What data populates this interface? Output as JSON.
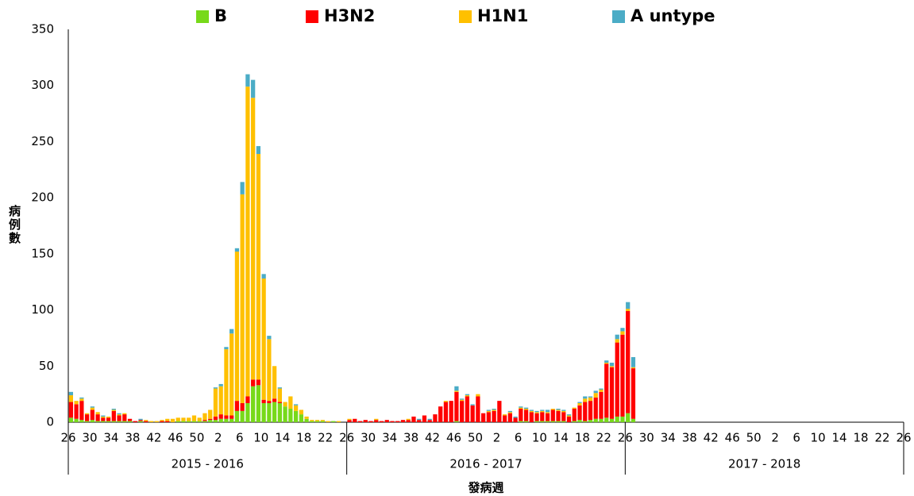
{
  "chart_data": {
    "type": "stacked-bar",
    "x_label": "發病週",
    "y_label": "病例數",
    "seasons": [
      "2015 - 2016",
      "2016 - 2017",
      "2017 - 2018"
    ],
    "categories": [
      "26",
      null,
      null,
      null,
      "30",
      null,
      null,
      null,
      "34",
      null,
      null,
      null,
      "38",
      null,
      null,
      null,
      "42",
      null,
      null,
      null,
      "46",
      null,
      null,
      null,
      "50",
      null,
      null,
      null,
      "2",
      null,
      null,
      null,
      "6",
      null,
      null,
      null,
      "10",
      null,
      null,
      null,
      "14",
      null,
      null,
      null,
      "18",
      null,
      null,
      null,
      "22",
      null,
      null,
      null,
      "26",
      null,
      null,
      null,
      "30",
      null,
      null,
      null,
      "34",
      null,
      null,
      null,
      "38",
      null,
      null,
      null,
      "42",
      null,
      null,
      null,
      "46",
      null,
      null,
      null,
      "50",
      null,
      null,
      null,
      "2",
      null,
      null,
      null,
      "6",
      null,
      null,
      null,
      "10",
      null,
      null,
      null,
      "14",
      null,
      null,
      null,
      "18",
      null,
      null,
      null,
      "22",
      null,
      null,
      null,
      "26",
      null,
      null,
      null,
      "30",
      null,
      null,
      null,
      "34",
      null,
      null,
      null,
      "38",
      null,
      null,
      null,
      "42",
      null,
      null,
      null,
      "46",
      null,
      null,
      null,
      "50",
      null,
      null,
      null,
      "2",
      null,
      null,
      null,
      "6",
      null,
      null,
      null,
      "10",
      null,
      null,
      null,
      "14",
      null,
      null,
      null,
      "18",
      null,
      null,
      null,
      "22",
      null,
      null,
      null,
      "26"
    ],
    "series": [
      {
        "name": "B",
        "color": "#77d91a",
        "values": [
          4,
          3,
          2,
          1,
          2,
          1,
          1,
          1,
          1,
          1,
          1,
          1,
          0,
          1,
          0,
          0,
          0,
          0,
          0,
          0,
          1,
          1,
          1,
          1,
          1,
          1,
          2,
          2,
          3,
          3,
          3,
          10,
          10,
          17,
          32,
          33,
          17,
          17,
          18,
          17,
          14,
          12,
          10,
          7,
          3,
          1,
          1,
          1,
          0,
          1,
          0,
          0,
          0,
          0,
          0,
          0,
          0,
          0,
          0,
          0,
          0,
          0,
          0,
          0,
          0,
          0,
          0,
          0,
          0,
          0,
          0,
          0,
          1,
          0,
          0,
          0,
          0,
          0,
          0,
          0,
          0,
          0,
          0,
          0,
          1,
          1,
          0,
          1,
          1,
          1,
          1,
          1,
          1,
          0,
          1,
          2,
          1,
          2,
          3,
          3,
          4,
          3,
          5,
          5,
          8,
          3,
          null,
          null,
          null,
          null,
          null,
          null,
          null,
          null,
          null,
          null,
          null,
          null,
          null,
          null,
          null,
          null,
          null,
          null,
          null,
          null,
          null,
          null,
          null,
          null,
          null,
          null,
          null,
          null,
          null,
          null,
          null,
          null,
          null,
          null,
          null,
          null,
          null,
          null,
          null,
          null,
          null,
          null,
          null,
          null,
          null,
          null,
          null,
          null,
          null,
          null,
          null
        ]
      },
      {
        "name": "H3N2",
        "color": "#ff0000",
        "values": [
          14,
          13,
          17,
          6,
          9,
          6,
          3,
          3,
          9,
          5,
          6,
          2,
          1,
          1,
          1,
          0,
          0,
          1,
          1,
          0,
          0,
          0,
          0,
          0,
          0,
          1,
          1,
          3,
          4,
          3,
          3,
          9,
          7,
          6,
          6,
          5,
          3,
          2,
          3,
          1,
          0,
          0,
          0,
          0,
          0,
          0,
          0,
          0,
          0,
          0,
          0,
          0,
          2,
          3,
          1,
          2,
          1,
          2,
          1,
          2,
          1,
          1,
          2,
          2,
          5,
          2,
          6,
          2,
          7,
          14,
          18,
          19,
          26,
          19,
          23,
          15,
          23,
          8,
          9,
          10,
          19,
          6,
          8,
          4,
          11,
          10,
          9,
          7,
          8,
          7,
          10,
          9,
          8,
          5,
          11,
          13,
          17,
          17,
          19,
          24,
          48,
          46,
          66,
          73,
          91,
          45,
          null,
          null,
          null,
          null,
          null,
          null,
          null,
          null,
          null,
          null,
          null,
          null,
          null,
          null,
          null,
          null,
          null,
          null,
          null,
          null,
          null,
          null,
          null,
          null,
          null,
          null,
          null,
          null,
          null,
          null,
          null,
          null,
          null,
          null,
          null,
          null,
          null,
          null,
          null,
          null,
          null,
          null,
          null,
          null,
          null,
          null,
          null,
          null,
          null,
          null,
          null
        ]
      },
      {
        "name": "H1N1",
        "color": "#ffc000",
        "values": [
          6,
          3,
          2,
          1,
          2,
          2,
          1,
          1,
          1,
          1,
          1,
          0,
          0,
          0,
          1,
          1,
          1,
          1,
          2,
          3,
          3,
          3,
          3,
          5,
          3,
          6,
          8,
          25,
          25,
          59,
          73,
          133,
          186,
          276,
          251,
          201,
          108,
          55,
          29,
          12,
          4,
          11,
          5,
          4,
          2,
          1,
          1,
          1,
          1,
          0,
          1,
          0,
          1,
          0,
          0,
          0,
          0,
          1,
          0,
          0,
          0,
          0,
          0,
          1,
          0,
          0,
          0,
          0,
          0,
          0,
          1,
          0,
          1,
          1,
          1,
          0,
          2,
          0,
          1,
          1,
          0,
          1,
          1,
          0,
          1,
          1,
          1,
          1,
          1,
          1,
          1,
          1,
          1,
          1,
          1,
          2,
          3,
          3,
          4,
          2,
          1,
          1,
          3,
          3,
          2,
          1,
          null,
          null,
          null,
          null,
          null,
          null,
          null,
          null,
          null,
          null,
          null,
          null,
          null,
          null,
          null,
          null,
          null,
          null,
          null,
          null,
          null,
          null,
          null,
          null,
          null,
          null,
          null,
          null,
          null,
          null,
          null,
          null,
          null,
          null,
          null,
          null,
          null,
          null,
          null,
          null,
          null,
          null,
          null,
          null,
          null,
          null,
          null,
          null,
          null,
          null,
          null
        ]
      },
      {
        "name": "A untype",
        "color": "#4bacc6",
        "values": [
          3,
          0,
          1,
          0,
          1,
          0,
          1,
          0,
          1,
          1,
          0,
          0,
          0,
          1,
          0,
          0,
          0,
          0,
          0,
          0,
          0,
          0,
          0,
          0,
          0,
          0,
          0,
          1,
          2,
          2,
          4,
          3,
          11,
          11,
          16,
          7,
          4,
          3,
          0,
          1,
          0,
          0,
          1,
          0,
          0,
          0,
          0,
          0,
          0,
          0,
          0,
          0,
          0,
          0,
          0,
          0,
          0,
          0,
          0,
          0,
          0,
          0,
          0,
          0,
          0,
          1,
          0,
          1,
          0,
          0,
          0,
          0,
          4,
          1,
          1,
          1,
          0,
          0,
          1,
          1,
          0,
          0,
          1,
          1,
          1,
          1,
          1,
          1,
          1,
          2,
          0,
          1,
          1,
          1,
          0,
          1,
          2,
          1,
          2,
          1,
          2,
          3,
          4,
          3,
          6,
          9,
          null,
          null,
          null,
          null,
          null,
          null,
          null,
          null,
          null,
          null,
          null,
          null,
          null,
          null,
          null,
          null,
          null,
          null,
          null,
          null,
          null,
          null,
          null,
          null,
          null,
          null,
          null,
          null,
          null,
          null,
          null,
          null,
          null,
          null,
          null,
          null,
          null,
          null,
          null,
          null,
          null,
          null,
          null,
          null,
          null,
          null,
          null,
          null,
          null,
          null,
          null
        ]
      }
    ],
    "ylim": [
      0,
      350
    ],
    "yticks": [
      0,
      50,
      100,
      150,
      200,
      250,
      300,
      350
    ]
  }
}
